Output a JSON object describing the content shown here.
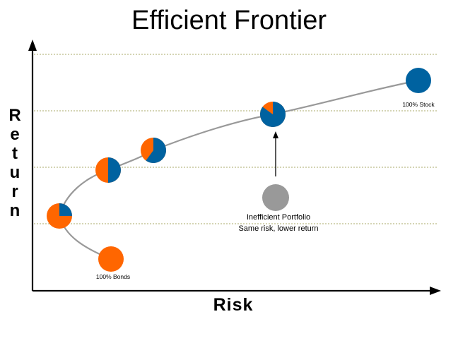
{
  "title": "Efficient Frontier",
  "axes": {
    "x_label": "Risk",
    "y_label": "Return"
  },
  "colors": {
    "stock": "#0062a0",
    "bonds": "#ff6600",
    "inefficient": "#999999",
    "curve": "#999999",
    "grid": "#bbbb88",
    "axis": "#000000"
  },
  "annotations": {
    "stock_label": "100% Stock",
    "bonds_label": "100% Bonds",
    "inefficient_line1": "Inefficient Portfolio",
    "inefficient_line2": "Same risk, lower return"
  },
  "chart_data": {
    "type": "scatter",
    "title": "Efficient Frontier",
    "xlabel": "Risk",
    "ylabel": "Return",
    "grid": "horizontal dotted",
    "portfolios": [
      {
        "name": "100% Bonds",
        "stock_fraction": 0.0,
        "on_frontier": true
      },
      {
        "name": "",
        "stock_fraction": 0.25,
        "on_frontier": true
      },
      {
        "name": "",
        "stock_fraction": 0.5,
        "on_frontier": true
      },
      {
        "name": "",
        "stock_fraction": 0.6,
        "on_frontier": true
      },
      {
        "name": "",
        "stock_fraction": 0.85,
        "on_frontier": true
      },
      {
        "name": "100% Stock",
        "stock_fraction": 1.0,
        "on_frontier": true
      },
      {
        "name": "Inefficient Portfolio",
        "stock_fraction": null,
        "on_frontier": false
      }
    ]
  }
}
